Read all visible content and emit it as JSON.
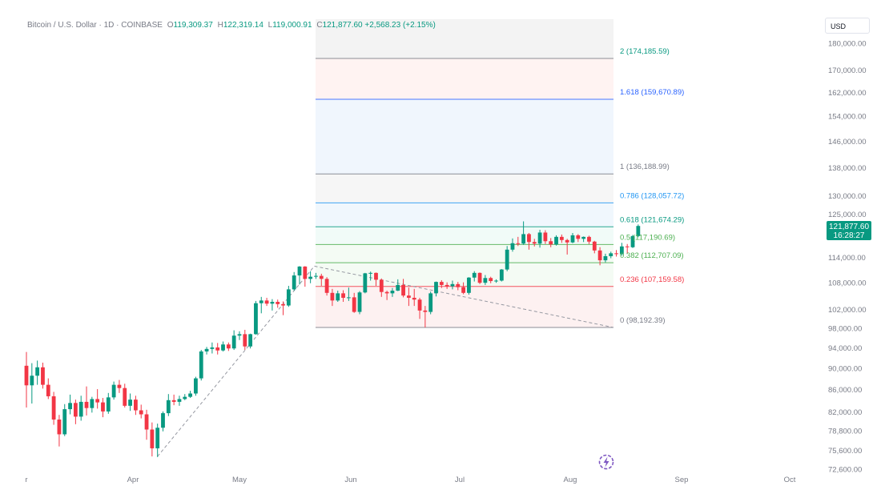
{
  "legend": {
    "symbol": "Bitcoin / U.S. Dollar · 1D · COINBASE",
    "o_label": "O",
    "o": "119,309.37",
    "h_label": "H",
    "h": "122,319.14",
    "l_label": "L",
    "l": "119,000.91",
    "c_label": "C",
    "c": "121,877.60",
    "change": "+2,568.23 (+2.15%)"
  },
  "currency": "USD",
  "last_price": {
    "value": "121,877.60",
    "countdown": "16:28:27"
  },
  "colors": {
    "up": "#089981",
    "down": "#f23645",
    "grid_text": "#787b86",
    "fib_0": "#787b86",
    "fib_0236": "#f23645",
    "fib_0382": "#4caf50",
    "fib_05": "#4caf50",
    "fib_0618": "#089981",
    "fib_0786": "#2196f3",
    "fib_1": "#787b86",
    "fib_1618": "#2962ff",
    "fib_2": "#787b86",
    "logo": "#7e57c2"
  },
  "chart_data": {
    "type": "candlestick",
    "y_scale": "log",
    "y_ticks": [
      "180,000.00",
      "170,000.00",
      "162,000.00",
      "154,000.00",
      "146,000.00",
      "138,000.00",
      "130,000.00",
      "125,000.00",
      "114,000.00",
      "108,000.00",
      "102,000.00",
      "98,000.00",
      "94,000.00",
      "90,000.00",
      "86,000.00",
      "82,000.00",
      "78,800.00",
      "75,600.00",
      "72,600.00"
    ],
    "x_ticks": [
      "r",
      "Apr",
      "May",
      "Jun",
      "Jul",
      "Aug",
      "Sep",
      "Oct"
    ],
    "fib_levels": [
      {
        "ratio": 0,
        "label": "0 (98,192.39)",
        "price": 98192.39
      },
      {
        "ratio": 0.236,
        "label": "0.236 (107,159.58)",
        "price": 107159.58
      },
      {
        "ratio": 0.382,
        "label": "0.382 (112,707.09)",
        "price": 112707.09
      },
      {
        "ratio": 0.5,
        "label": "0.5 (117,190.69)",
        "price": 117190.69
      },
      {
        "ratio": 0.618,
        "label": "0.618 (121,674.29)",
        "price": 121674.29
      },
      {
        "ratio": 0.786,
        "label": "0.786 (128,057.72)",
        "price": 128057.72
      },
      {
        "ratio": 1,
        "label": "1 (136,188.99)",
        "price": 136188.99
      },
      {
        "ratio": 1.618,
        "label": "1.618 (159,670.89)",
        "price": 159670.89
      },
      {
        "ratio": 2,
        "label": "2 (174,185.59)",
        "price": 174185.59
      }
    ],
    "candles": [
      [
        90500,
        93200,
        82800,
        86800
      ],
      [
        86800,
        91000,
        83500,
        88600
      ],
      [
        88600,
        91500,
        86900,
        90200
      ],
      [
        90200,
        91100,
        86200,
        86900
      ],
      [
        86900,
        88100,
        84300,
        84800
      ],
      [
        84800,
        85600,
        79800,
        80700
      ],
      [
        80700,
        81500,
        76200,
        78200
      ],
      [
        78200,
        83400,
        77900,
        82500
      ],
      [
        82500,
        85100,
        81600,
        83600
      ],
      [
        83600,
        84200,
        79900,
        81200
      ],
      [
        81200,
        84900,
        80500,
        83800
      ],
      [
        83800,
        86600,
        81400,
        82700
      ],
      [
        82700,
        84700,
        81900,
        84300
      ],
      [
        84300,
        86100,
        82600,
        83700
      ],
      [
        83700,
        84500,
        81100,
        82100
      ],
      [
        82100,
        85400,
        81700,
        84600
      ],
      [
        84600,
        87500,
        84200,
        86900
      ],
      [
        86900,
        87800,
        85400,
        86300
      ],
      [
        86300,
        87100,
        82800,
        83100
      ],
      [
        83100,
        85300,
        82200,
        84200
      ],
      [
        84200,
        84900,
        81500,
        82300
      ],
      [
        82300,
        83300,
        80900,
        81600
      ],
      [
        81600,
        82400,
        77300,
        79000
      ],
      [
        79000,
        80200,
        74600,
        75900
      ],
      [
        75900,
        80000,
        74500,
        79300
      ],
      [
        79300,
        82100,
        78700,
        81800
      ],
      [
        81800,
        85200,
        81300,
        84100
      ],
      [
        84100,
        85100,
        83200,
        83800
      ],
      [
        83800,
        84900,
        83100,
        84300
      ],
      [
        84300,
        85200,
        84100,
        84700
      ],
      [
        84700,
        85800,
        84500,
        85300
      ],
      [
        85300,
        88400,
        84900,
        88100
      ],
      [
        88100,
        93600,
        87700,
        93300
      ],
      [
        93300,
        94200,
        92700,
        93800
      ],
      [
        93800,
        95100,
        92900,
        94100
      ],
      [
        94100,
        95000,
        92700,
        93500
      ],
      [
        93500,
        95300,
        93300,
        94700
      ],
      [
        94700,
        95100,
        93400,
        93900
      ],
      [
        93900,
        97600,
        93600,
        96500
      ],
      [
        96500,
        97400,
        95600,
        96800
      ],
      [
        96800,
        97700,
        93600,
        94300
      ],
      [
        94300,
        96900,
        93900,
        96800
      ],
      [
        96800,
        103900,
        96700,
        103400
      ],
      [
        103400,
        104800,
        101200,
        104000
      ],
      [
        104000,
        104600,
        102800,
        103300
      ],
      [
        103300,
        104300,
        101800,
        103700
      ],
      [
        103700,
        104200,
        102400,
        103200
      ],
      [
        103200,
        103800,
        100800,
        102900
      ],
      [
        102900,
        107300,
        102600,
        106500
      ],
      [
        106500,
        110500,
        106200,
        109700
      ],
      [
        109700,
        111900,
        107600,
        111800
      ],
      [
        111800,
        111900,
        107100,
        108900
      ],
      [
        108900,
        110700,
        107900,
        109400
      ],
      [
        109400,
        110300,
        108900,
        109600
      ],
      [
        109600,
        110100,
        107300,
        108900
      ],
      [
        108900,
        109300,
        105100,
        105700
      ],
      [
        105700,
        106600,
        102800,
        104000
      ],
      [
        104000,
        106200,
        103700,
        105600
      ],
      [
        105600,
        106300,
        103700,
        104600
      ],
      [
        104600,
        106900,
        103900,
        104700
      ],
      [
        104700,
        105700,
        101300,
        101500
      ],
      [
        101500,
        106100,
        101000,
        105800
      ],
      [
        105800,
        110300,
        105600,
        110200
      ],
      [
        110200,
        110600,
        108500,
        110300
      ],
      [
        110300,
        110400,
        107300,
        108700
      ],
      [
        108700,
        109000,
        104800,
        105900
      ],
      [
        105900,
        106200,
        104100,
        105600
      ],
      [
        105600,
        106800,
        104800,
        106200
      ],
      [
        106200,
        108800,
        106100,
        107500
      ],
      [
        107500,
        108900,
        104700,
        105100
      ],
      [
        105100,
        106900,
        102800,
        104600
      ],
      [
        104600,
        106600,
        102800,
        104200
      ],
      [
        104200,
        104600,
        100000,
        101800
      ],
      [
        101800,
        102800,
        98200,
        101500
      ],
      [
        101500,
        106000,
        101000,
        105600
      ],
      [
        105600,
        108300,
        104900,
        108200
      ],
      [
        108200,
        108600,
        106800,
        107500
      ],
      [
        107500,
        108100,
        106600,
        107200
      ],
      [
        107200,
        108500,
        106500,
        107700
      ],
      [
        107700,
        108200,
        106300,
        107000
      ],
      [
        107000,
        108100,
        105400,
        105700
      ],
      [
        105700,
        109300,
        105300,
        109200
      ],
      [
        109200,
        110700,
        108300,
        110300
      ],
      [
        110300,
        110400,
        107700,
        108000
      ],
      [
        108000,
        109800,
        107500,
        109100
      ],
      [
        109100,
        109400,
        107900,
        108400
      ],
      [
        108400,
        108800,
        108000,
        108500
      ],
      [
        108500,
        111200,
        108300,
        111100
      ],
      [
        111100,
        116800,
        110700,
        115900
      ],
      [
        115900,
        118700,
        115400,
        117500
      ],
      [
        117500,
        119100,
        116800,
        117400
      ],
      [
        117400,
        123100,
        117100,
        119800
      ],
      [
        119800,
        120100,
        115900,
        117800
      ],
      [
        117800,
        118600,
        116700,
        117400
      ],
      [
        117400,
        120900,
        116400,
        120200
      ],
      [
        120200,
        120800,
        117300,
        118000
      ],
      [
        118000,
        118800,
        116500,
        117200
      ],
      [
        117200,
        119500,
        116900,
        119100
      ],
      [
        119100,
        119700,
        117600,
        118300
      ],
      [
        118300,
        118600,
        114700,
        117700
      ],
      [
        117700,
        120100,
        117500,
        119500
      ],
      [
        119500,
        119800,
        117800,
        118600
      ],
      [
        118600,
        119200,
        117800,
        119100
      ],
      [
        119100,
        119400,
        117300,
        117900
      ],
      [
        117900,
        118100,
        115000,
        115700
      ],
      [
        115700,
        116500,
        112100,
        113300
      ],
      [
        113300,
        114900,
        112800,
        114300
      ],
      [
        114300,
        115400,
        113800,
        115000
      ],
      [
        115000,
        115800,
        114200,
        114800
      ],
      [
        114800,
        117600,
        114400,
        116700
      ],
      [
        116700,
        117300,
        114900,
        116500
      ],
      [
        116500,
        119600,
        116300,
        119300
      ],
      [
        119300,
        122300,
        119000,
        121900
      ]
    ]
  }
}
